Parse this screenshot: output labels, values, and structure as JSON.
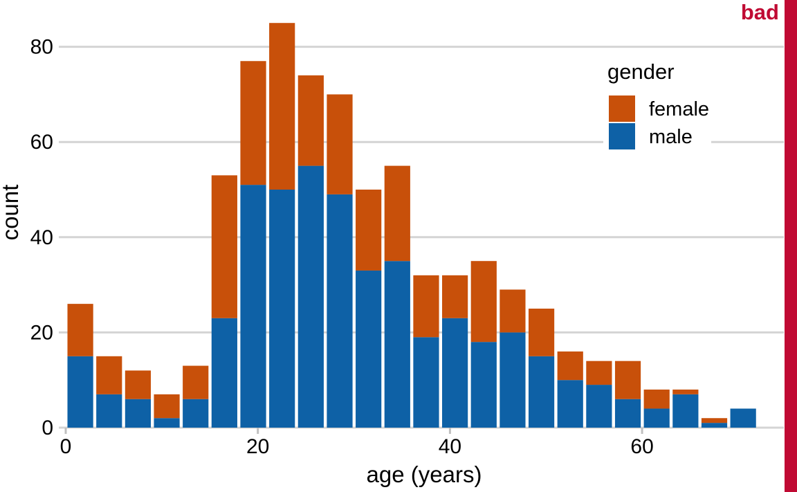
{
  "annotation": {
    "label": "bad",
    "color": "#C00A33"
  },
  "colors": {
    "female": "#C8500A",
    "male": "#0E61A6",
    "grid": "#D4D4D4",
    "tick": "#C0C0C0",
    "text": "#000000",
    "background": "#FFFFFF"
  },
  "chart_data": {
    "type": "bar",
    "stacked": true,
    "title": "",
    "xlabel": "age (years)",
    "ylabel": "count",
    "bin_width": 3,
    "bin_starts": [
      0,
      3,
      6,
      9,
      12,
      15,
      18,
      21,
      24,
      27,
      30,
      33,
      36,
      39,
      42,
      45,
      48,
      51,
      54,
      57,
      60,
      63,
      66,
      69
    ],
    "series": [
      {
        "name": "female",
        "color": "#C8500A",
        "values": [
          11,
          8,
          6,
          5,
          7,
          30,
          26,
          35,
          19,
          21,
          17,
          20,
          13,
          9,
          17,
          9,
          10,
          6,
          5,
          8,
          4,
          1,
          1,
          0
        ]
      },
      {
        "name": "male",
        "color": "#0E61A6",
        "values": [
          15,
          7,
          6,
          2,
          6,
          23,
          51,
          50,
          55,
          49,
          33,
          35,
          19,
          23,
          18,
          20,
          15,
          10,
          9,
          6,
          4,
          7,
          1,
          4
        ]
      }
    ],
    "totals": [
      26,
      15,
      12,
      7,
      13,
      53,
      77,
      85,
      74,
      70,
      50,
      55,
      32,
      32,
      35,
      29,
      25,
      16,
      14,
      14,
      8,
      8,
      2,
      4
    ],
    "x_ticks": [
      0,
      20,
      40,
      60
    ],
    "y_ticks": [
      0,
      20,
      40,
      60,
      80
    ],
    "xlim": [
      0,
      72
    ],
    "ylim": [
      0,
      88
    ],
    "grid": "horizontal",
    "legend": {
      "title": "gender",
      "entries": [
        {
          "label": "female",
          "color": "#C8500A"
        },
        {
          "label": "male",
          "color": "#0E61A6"
        }
      ],
      "position": "top-right"
    }
  }
}
